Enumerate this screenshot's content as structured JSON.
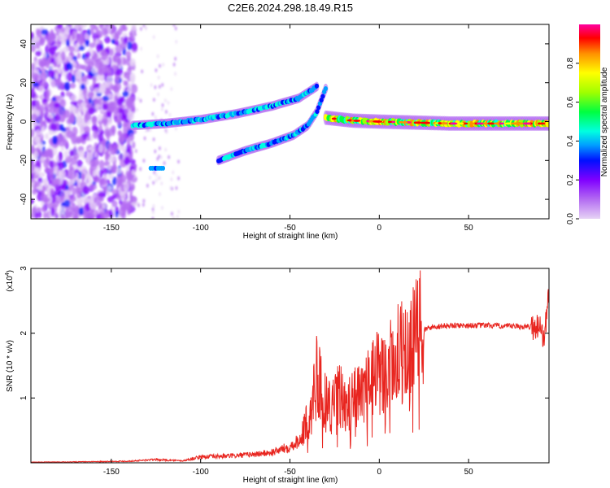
{
  "title": "C2E6.2024.298.18.49.R15",
  "colors": {
    "snr_line": "#e8251f",
    "colormap": [
      "#e6d2f5",
      "#b36bf2",
      "#8000ff",
      "#0010ff",
      "#00a0ff",
      "#00ffe0",
      "#00ff40",
      "#a0ff00",
      "#ffff00",
      "#ff9000",
      "#ff0000",
      "#ff00a0"
    ]
  },
  "chart_data": [
    {
      "type": "heatmap",
      "xlabel": "Height of straight line (km)",
      "ylabel": "Frequency (Hz)",
      "xlim": [
        -195,
        95
      ],
      "ylim": [
        -50,
        50
      ],
      "xticks": [
        -150,
        -100,
        -50,
        0,
        50
      ],
      "yticks": [
        -40,
        -20,
        0,
        20,
        40
      ],
      "ridges": [
        {
          "x": [
            -138,
            -120,
            -100,
            -80,
            -60,
            -45,
            -35
          ],
          "y": [
            -2,
            -1,
            1,
            4,
            8,
            12,
            18
          ],
          "intensity": 0.45
        },
        {
          "x": [
            -90,
            -75,
            -60,
            -48,
            -40,
            -35,
            -30
          ],
          "y": [
            -20,
            -15,
            -11,
            -7,
            -2,
            5,
            17
          ],
          "intensity": 0.4
        },
        {
          "x": [
            -30,
            -15,
            0,
            20,
            40,
            60,
            80,
            95
          ],
          "y": [
            2,
            0.5,
            0,
            -0.5,
            -1,
            -1,
            -1,
            -1
          ],
          "intensity": 0.75
        }
      ],
      "colorbar": {
        "label": "Normalized spectral amplitude",
        "range": [
          0,
          1
        ],
        "ticks": [
          "0.0",
          "0.2",
          "0.4",
          "0.6",
          "0.8"
        ]
      }
    },
    {
      "type": "line",
      "xlabel": "Height of straight line (km)",
      "ylabel": "SNR (10 * v/v)",
      "y_multiplier": "(x10",
      "y_multiplier_exp": "4",
      "y_multiplier_close": ")",
      "xlim": [
        -195,
        95
      ],
      "ylim": [
        0,
        30000
      ],
      "xticks": [
        -150,
        -100,
        -50,
        0,
        50
      ],
      "yticks": [
        10000,
        20000,
        30000
      ],
      "ytick_labels": [
        "1",
        "2",
        "3"
      ],
      "series": [
        {
          "x": [
            -195,
            -170,
            -140,
            -125,
            -110,
            -100,
            -90,
            -80,
            -70,
            -60,
            -50,
            -45,
            -40,
            -37,
            -35,
            -33,
            -30,
            -27,
            -25,
            -22,
            -20,
            -18,
            -15,
            -12,
            -10,
            -7,
            -5,
            -3,
            0,
            3,
            5,
            8,
            10,
            12,
            15,
            18,
            20,
            22,
            25,
            30,
            40,
            50,
            60,
            70,
            80,
            88,
            90,
            92,
            94,
            95
          ],
          "y": [
            100,
            150,
            250,
            500,
            300,
            900,
            1000,
            1100,
            1300,
            1600,
            2500,
            3500,
            6500,
            10500,
            14000,
            12000,
            10000,
            8500,
            9000,
            11000,
            9000,
            7500,
            11500,
            10500,
            10000,
            12000,
            13000,
            13500,
            14000,
            13500,
            14500,
            15500,
            16500,
            17000,
            18000,
            18500,
            19000,
            19500,
            20500,
            21000,
            21200,
            21200,
            21200,
            21100,
            21000,
            21000,
            21500,
            19000,
            23000,
            28000
          ]
        }
      ]
    }
  ]
}
